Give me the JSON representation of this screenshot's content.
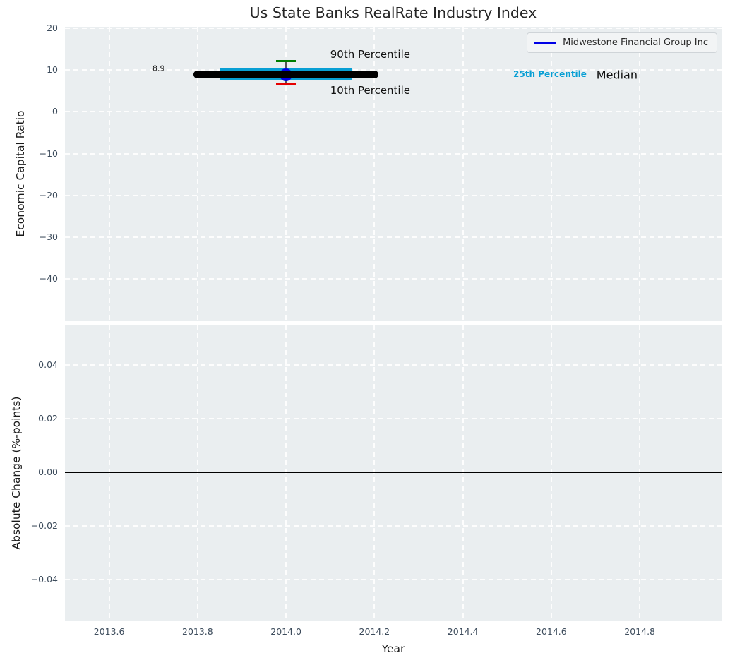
{
  "figure_title": "Us State Banks RealRate Industry Index",
  "colors": {
    "plot_background": "#eaeef0",
    "grid": "#fdfdfd",
    "tick_label": "#3d4c5c",
    "title": "#262626",
    "company_blue": "#0000e6",
    "iqr_cyan": "#089fd4",
    "p90_green": "#007d00",
    "p10_red": "#e60000"
  },
  "chart_data": [
    {
      "type": "errorbar",
      "title": "Us State Banks RealRate Industry Index",
      "ylabel": "Economic Capital Ratio",
      "xlim": [
        2013.5,
        2014.985
      ],
      "ylim": [
        -50.1,
        20.35
      ],
      "grid": "white dashed, on",
      "yticks": [
        {
          "v": 20,
          "label": "20"
        },
        {
          "v": 10,
          "label": "10"
        },
        {
          "v": 0,
          "label": "0"
        },
        {
          "v": -10,
          "label": "−10"
        },
        {
          "v": -20,
          "label": "−20"
        },
        {
          "v": -30,
          "label": "−30"
        },
        {
          "v": -40,
          "label": "−40"
        }
      ],
      "xticks": [
        {
          "v": 2013.6,
          "label": "2013.6"
        },
        {
          "v": 2013.8,
          "label": "2013.8"
        },
        {
          "v": 2014.0,
          "label": "2014.0"
        },
        {
          "v": 2014.2,
          "label": "2014.2"
        },
        {
          "v": 2014.4,
          "label": "2014.4"
        },
        {
          "v": 2014.6,
          "label": "2014.6"
        },
        {
          "v": 2014.8,
          "label": "2014.8"
        }
      ],
      "legend": {
        "position": "upper right",
        "entries": [
          {
            "label": "Midwestone Financial Group Inc",
            "color": "#0000e6"
          }
        ]
      },
      "series": {
        "name": "Midwestone Financial Group Inc",
        "point": {
          "x": 2014.0,
          "y": 8.9
        },
        "value_label": "8.9",
        "percentiles": {
          "p10": 6.6,
          "p25": 7.5,
          "median": 8.9,
          "p75": 10.4,
          "p90": 12.2
        },
        "median_span_x": [
          2013.8,
          2014.2
        ],
        "iqr_span_x": [
          2013.85,
          2014.15
        ],
        "colors": {
          "marker": "#0000e6",
          "median_line": "#000000",
          "iqr_bar": "#089fd4",
          "p90_cap": "#007d00",
          "p10_cap": "#e60000",
          "whisker": "#555555"
        }
      },
      "annotations": [
        {
          "text": "8.9",
          "x": 2013.712,
          "y": 10.4,
          "color": "#1a1a1a",
          "size": 11,
          "weight": "normal",
          "align": "center"
        },
        {
          "text": "90th Percentile",
          "x": 2014.1,
          "y": 13.8,
          "color": "#111111",
          "size": 15,
          "weight": "normal",
          "align": "left"
        },
        {
          "text": "10th Percentile",
          "x": 2014.1,
          "y": 5.1,
          "color": "#111111",
          "size": 15,
          "weight": "normal",
          "align": "left"
        },
        {
          "text": "25th Percentile",
          "x": 2014.514,
          "y": 9.0,
          "color": "#089fd4",
          "size": 12,
          "weight": "bold",
          "align": "left"
        },
        {
          "text": "Median",
          "x": 2014.702,
          "y": 8.9,
          "color": "#111111",
          "size": 16,
          "weight": "normal",
          "align": "left"
        }
      ]
    },
    {
      "type": "line",
      "ylabel": "Absolute Change (%-points)",
      "xlabel": "Year",
      "xlim": [
        2013.5,
        2014.985
      ],
      "ylim": [
        -0.0556,
        0.0549
      ],
      "grid": "white dashed, on",
      "yticks": [
        {
          "v": 0.04,
          "label": "0.04"
        },
        {
          "v": 0.02,
          "label": "0.02"
        },
        {
          "v": 0.0,
          "label": "0.00"
        },
        {
          "v": -0.02,
          "label": "−0.02"
        },
        {
          "v": -0.04,
          "label": "−0.04"
        }
      ],
      "xticks": [
        {
          "v": 2013.6,
          "label": "2013.6"
        },
        {
          "v": 2013.8,
          "label": "2013.8"
        },
        {
          "v": 2014.0,
          "label": "2014.0"
        },
        {
          "v": 2014.2,
          "label": "2014.2"
        },
        {
          "v": 2014.4,
          "label": "2014.4"
        },
        {
          "v": 2014.6,
          "label": "2014.6"
        },
        {
          "v": 2014.8,
          "label": "2014.8"
        }
      ],
      "zero_line": {
        "y": 0.0,
        "color": "#000000"
      },
      "values": []
    }
  ]
}
